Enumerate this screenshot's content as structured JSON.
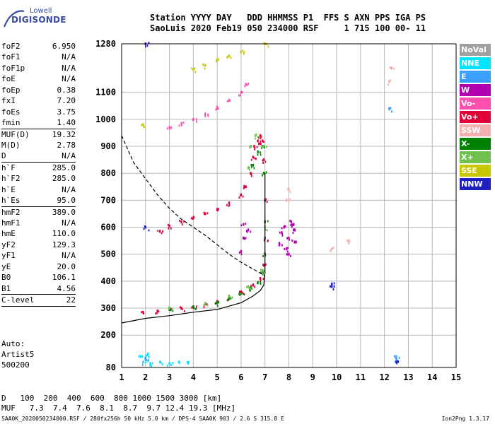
{
  "logo": {
    "line1": "Lowell",
    "line2": "DIGISONDE"
  },
  "header": {
    "line1": "Station YYYY DAY   DDD HHMMSS P1  FFS S AXN PPS IGA PS",
    "line2": "SaoLuis 2020 Feb19 050 234000 RSF     1 715 100 00- 11"
  },
  "params_group1": [
    {
      "label": "foF2",
      "value": "6.950"
    },
    {
      "label": "foF1",
      "value": "N/A"
    },
    {
      "label": "foF1p",
      "value": "N/A"
    },
    {
      "label": "foE",
      "value": "N/A"
    },
    {
      "label": "foEp",
      "value": "0.38"
    },
    {
      "label": "fxI",
      "value": "7.20"
    },
    {
      "label": "foEs",
      "value": "3.75"
    },
    {
      "label": "fmin",
      "value": "1.40"
    }
  ],
  "params_group2": [
    {
      "label": "MUF(D)",
      "value": "19.32"
    },
    {
      "label": "M(D)",
      "value": "2.78"
    },
    {
      "label": "D",
      "value": "N/A"
    }
  ],
  "params_group3": [
    {
      "label": "h`F",
      "value": "285.0"
    },
    {
      "label": "h`F2",
      "value": "285.0"
    },
    {
      "label": "h`E",
      "value": "N/A"
    },
    {
      "label": "h`Es",
      "value": "95.0"
    }
  ],
  "params_group4": [
    {
      "label": "hmF2",
      "value": "389.0"
    },
    {
      "label": "hmF1",
      "value": "N/A"
    },
    {
      "label": "hmE",
      "value": "110.0"
    },
    {
      "label": "yF2",
      "value": "129.3"
    },
    {
      "label": "yF1",
      "value": "N/A"
    },
    {
      "label": "yE",
      "value": "20.0"
    },
    {
      "label": "B0",
      "value": "106.1"
    },
    {
      "label": "B1",
      "value": "4.56"
    }
  ],
  "params_group5": [
    {
      "label": "C-level",
      "value": "22"
    }
  ],
  "auto_block": {
    "line1": "Auto:",
    "line2": "Artist5",
    "line3": "500200"
  },
  "dmuf": {
    "d_label": "D",
    "d_values": "100  200  400  600  800 1000 1500 3000 [km]",
    "muf_label": "MUF",
    "muf_values": "7.3  7.4  7.6  8.1  8.7  9.7 12.4 19.3 [MHz]"
  },
  "footer": {
    "left": "SAA0K_2020050234000.RSF / 280fx256h 50 kHz 5.0 km / DPS-4 SAA0K 903 / 2.6 S 315.8 E",
    "right": "Ion2Png 1.3.17"
  },
  "legend": [
    {
      "label": "NoVal",
      "color": "#a0a0a0"
    },
    {
      "label": "NNE",
      "color": "#00e5ff"
    },
    {
      "label": "E",
      "color": "#3aa0ff"
    },
    {
      "label": "W",
      "color": "#b000b0"
    },
    {
      "label": "Vo-",
      "color": "#ff50b0"
    },
    {
      "label": "Vo+",
      "color": "#e0003a"
    },
    {
      "label": "SSW",
      "color": "#f4b0b0"
    },
    {
      "label": "X-",
      "color": "#008000"
    },
    {
      "label": "X+",
      "color": "#70c050"
    },
    {
      "label": "SSE",
      "color": "#c8c800"
    },
    {
      "label": "NNW",
      "color": "#2020c0"
    }
  ],
  "chart_data": {
    "type": "scatter",
    "xlim": [
      1,
      15
    ],
    "ylim": [
      80,
      1280
    ],
    "xticks": [
      1,
      2,
      3,
      4,
      5,
      6,
      7,
      8,
      9,
      10,
      11,
      12,
      13,
      14,
      15
    ],
    "yticks": [
      80,
      200,
      300,
      400,
      500,
      600,
      700,
      800,
      900,
      1000,
      1100,
      1280
    ],
    "grid": true,
    "series": [
      {
        "name": "Vo+",
        "color": "#e0003a",
        "points": [
          [
            1.9,
            285
          ],
          [
            2.5,
            290
          ],
          [
            3.0,
            295
          ],
          [
            3.5,
            300
          ],
          [
            4.0,
            305
          ],
          [
            4.5,
            315
          ],
          [
            5.0,
            325
          ],
          [
            5.5,
            340
          ],
          [
            6.0,
            360
          ],
          [
            6.5,
            385
          ],
          [
            6.8,
            410
          ],
          [
            6.95,
            460
          ],
          [
            7.0,
            560
          ],
          [
            7.0,
            700
          ],
          [
            6.95,
            850
          ],
          [
            6.9,
            920
          ],
          [
            6.8,
            940
          ],
          [
            2.6,
            585
          ],
          [
            3.0,
            605
          ],
          [
            3.5,
            620
          ],
          [
            4.0,
            635
          ],
          [
            4.5,
            650
          ],
          [
            5.0,
            665
          ],
          [
            5.5,
            690
          ],
          [
            6.0,
            720
          ],
          [
            6.2,
            750
          ],
          [
            6.4,
            800
          ],
          [
            6.5,
            860
          ],
          [
            6.55,
            900
          ],
          [
            6.7,
            920
          ]
        ]
      },
      {
        "name": "X-",
        "color": "#008000",
        "points": [
          [
            3.0,
            295
          ],
          [
            4.0,
            305
          ],
          [
            5.0,
            320
          ],
          [
            5.5,
            335
          ],
          [
            6.0,
            355
          ],
          [
            6.4,
            375
          ],
          [
            6.7,
            395
          ],
          [
            6.9,
            430
          ],
          [
            7.0,
            500
          ],
          [
            7.0,
            620
          ],
          [
            6.95,
            800
          ],
          [
            6.9,
            900
          ],
          [
            6.7,
            880
          ],
          [
            6.5,
            830
          ]
        ]
      },
      {
        "name": "X+",
        "color": "#70c050",
        "points": [
          [
            3.0,
            300
          ],
          [
            4.5,
            318
          ],
          [
            5.5,
            345
          ],
          [
            6.3,
            380
          ],
          [
            6.9,
            440
          ],
          [
            7.0,
            600
          ],
          [
            6.95,
            900
          ],
          [
            6.6,
            940
          ],
          [
            6.4,
            900
          ],
          [
            6.3,
            820
          ]
        ]
      },
      {
        "name": "W",
        "color": "#b000b0",
        "points": [
          [
            7.8,
            600
          ],
          [
            8.0,
            560
          ],
          [
            8.1,
            620
          ],
          [
            7.9,
            520
          ],
          [
            8.2,
            590
          ],
          [
            8.0,
            500
          ],
          [
            7.7,
            580
          ],
          [
            8.3,
            545
          ],
          [
            8.15,
            610
          ],
          [
            7.6,
            540
          ],
          [
            6.1,
            560
          ],
          [
            6.0,
            510
          ],
          [
            6.3,
            590
          ],
          [
            6.1,
            610
          ]
        ]
      },
      {
        "name": "Vo-",
        "color": "#ff50b0",
        "points": [
          [
            3.0,
            970
          ],
          [
            3.5,
            985
          ],
          [
            4.0,
            1000
          ],
          [
            4.5,
            1020
          ],
          [
            5.0,
            1045
          ],
          [
            5.5,
            1070
          ],
          [
            6.0,
            1100
          ],
          [
            6.2,
            1130
          ]
        ]
      },
      {
        "name": "SSE",
        "color": "#c8c800",
        "points": [
          [
            4.0,
            1185
          ],
          [
            4.5,
            1200
          ],
          [
            5.0,
            1220
          ],
          [
            5.5,
            1235
          ],
          [
            6.0,
            1250
          ],
          [
            1.9,
            980
          ],
          [
            7.0,
            1280
          ]
        ]
      },
      {
        "name": "NNE",
        "color": "#00e5ff",
        "points": [
          [
            1.9,
            100
          ],
          [
            2.0,
            115
          ],
          [
            2.2,
            95
          ],
          [
            2.6,
            100
          ],
          [
            3.0,
            95
          ],
          [
            3.4,
            100
          ],
          [
            3.8,
            98
          ],
          [
            1.8,
            120
          ],
          [
            2.1,
            130
          ]
        ]
      },
      {
        "name": "E",
        "color": "#3aa0ff",
        "points": [
          [
            12.2,
            1040
          ],
          [
            12.5,
            120
          ],
          [
            12.5,
            110
          ],
          [
            2.0,
            115
          ]
        ]
      },
      {
        "name": "NNW",
        "color": "#2020c0",
        "points": [
          [
            2.0,
            1280
          ],
          [
            2.0,
            600
          ],
          [
            9.8,
            380
          ],
          [
            9.8,
            390
          ],
          [
            12.5,
            100
          ]
        ]
      },
      {
        "name": "SSW",
        "color": "#f4b0b0",
        "points": [
          [
            9.8,
            520
          ],
          [
            10.5,
            550
          ],
          [
            12.3,
            1190
          ],
          [
            12.2,
            1140
          ],
          [
            8.0,
            740
          ],
          [
            7.9,
            700
          ]
        ]
      },
      {
        "name": "profile_solid",
        "color": "#000000",
        "points": [
          [
            1.0,
            245
          ],
          [
            2.0,
            262
          ],
          [
            3.0,
            272
          ],
          [
            4.0,
            285
          ],
          [
            5.0,
            295
          ],
          [
            6.0,
            320
          ],
          [
            6.5,
            345
          ],
          [
            6.8,
            365
          ],
          [
            6.95,
            385
          ],
          [
            7.0,
            430
          ],
          [
            7.0,
            600
          ],
          [
            7.0,
            800
          ]
        ]
      },
      {
        "name": "profile_dashed",
        "color": "#000000",
        "points": [
          [
            1.0,
            940
          ],
          [
            1.5,
            840
          ],
          [
            2.0,
            780
          ],
          [
            2.5,
            720
          ],
          [
            3.0,
            670
          ],
          [
            3.5,
            630
          ],
          [
            4.0,
            600
          ],
          [
            4.5,
            570
          ],
          [
            5.0,
            535
          ],
          [
            5.5,
            500
          ],
          [
            6.0,
            470
          ],
          [
            6.5,
            445
          ],
          [
            7.0,
            420
          ]
        ]
      }
    ]
  }
}
